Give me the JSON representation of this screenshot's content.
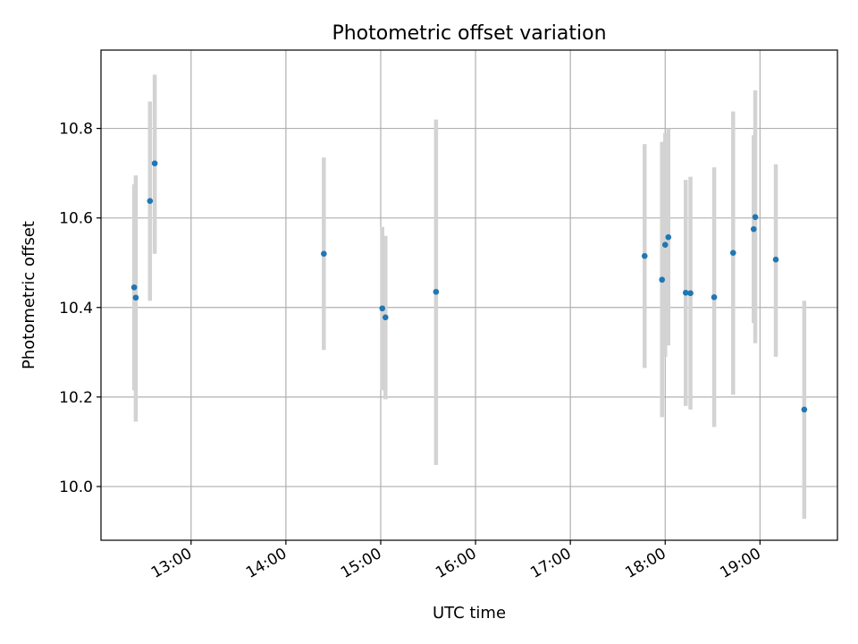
{
  "chart_data": {
    "type": "scatter",
    "title": "Photometric offset variation",
    "xlabel": "UTC time",
    "ylabel": "Photometric offset",
    "xlim": [
      "12:03",
      "19:49"
    ],
    "ylim": [
      9.88,
      10.975
    ],
    "xticks": [
      "13:00",
      "14:00",
      "15:00",
      "16:00",
      "17:00",
      "18:00",
      "19:00"
    ],
    "yticks": [
      "10.0",
      "10.2",
      "10.4",
      "10.6",
      "10.8"
    ],
    "grid": true,
    "point_color": "#1f77b4",
    "errorbar_color": "#d3d3d3",
    "points": [
      {
        "x": "12:24",
        "y": 10.445,
        "ymin": 10.215,
        "ymax": 10.675
      },
      {
        "x": "12:25",
        "y": 10.422,
        "ymin": 10.145,
        "ymax": 10.695
      },
      {
        "x": "12:34",
        "y": 10.638,
        "ymin": 10.415,
        "ymax": 10.86
      },
      {
        "x": "12:37",
        "y": 10.722,
        "ymin": 10.52,
        "ymax": 10.92
      },
      {
        "x": "14:24",
        "y": 10.52,
        "ymin": 10.305,
        "ymax": 10.735
      },
      {
        "x": "15:01",
        "y": 10.398,
        "ymin": 10.215,
        "ymax": 10.58
      },
      {
        "x": "15:03",
        "y": 10.378,
        "ymin": 10.195,
        "ymax": 10.56
      },
      {
        "x": "15:35",
        "y": 10.435,
        "ymin": 10.048,
        "ymax": 10.82
      },
      {
        "x": "17:47",
        "y": 10.515,
        "ymin": 10.265,
        "ymax": 10.765
      },
      {
        "x": "17:58",
        "y": 10.462,
        "ymin": 10.155,
        "ymax": 10.77
      },
      {
        "x": "18:00",
        "y": 10.54,
        "ymin": 10.29,
        "ymax": 10.79
      },
      {
        "x": "18:02",
        "y": 10.557,
        "ymin": 10.315,
        "ymax": 10.8
      },
      {
        "x": "18:13",
        "y": 10.433,
        "ymin": 10.18,
        "ymax": 10.685
      },
      {
        "x": "18:16",
        "y": 10.432,
        "ymin": 10.172,
        "ymax": 10.692
      },
      {
        "x": "18:31",
        "y": 10.423,
        "ymin": 10.133,
        "ymax": 10.713
      },
      {
        "x": "18:43",
        "y": 10.522,
        "ymin": 10.205,
        "ymax": 10.838
      },
      {
        "x": "18:56",
        "y": 10.575,
        "ymin": 10.365,
        "ymax": 10.785
      },
      {
        "x": "18:57",
        "y": 10.602,
        "ymin": 10.32,
        "ymax": 10.885
      },
      {
        "x": "19:10",
        "y": 10.507,
        "ymin": 10.29,
        "ymax": 10.72
      },
      {
        "x": "19:28",
        "y": 10.172,
        "ymin": 9.928,
        "ymax": 10.415
      }
    ]
  }
}
